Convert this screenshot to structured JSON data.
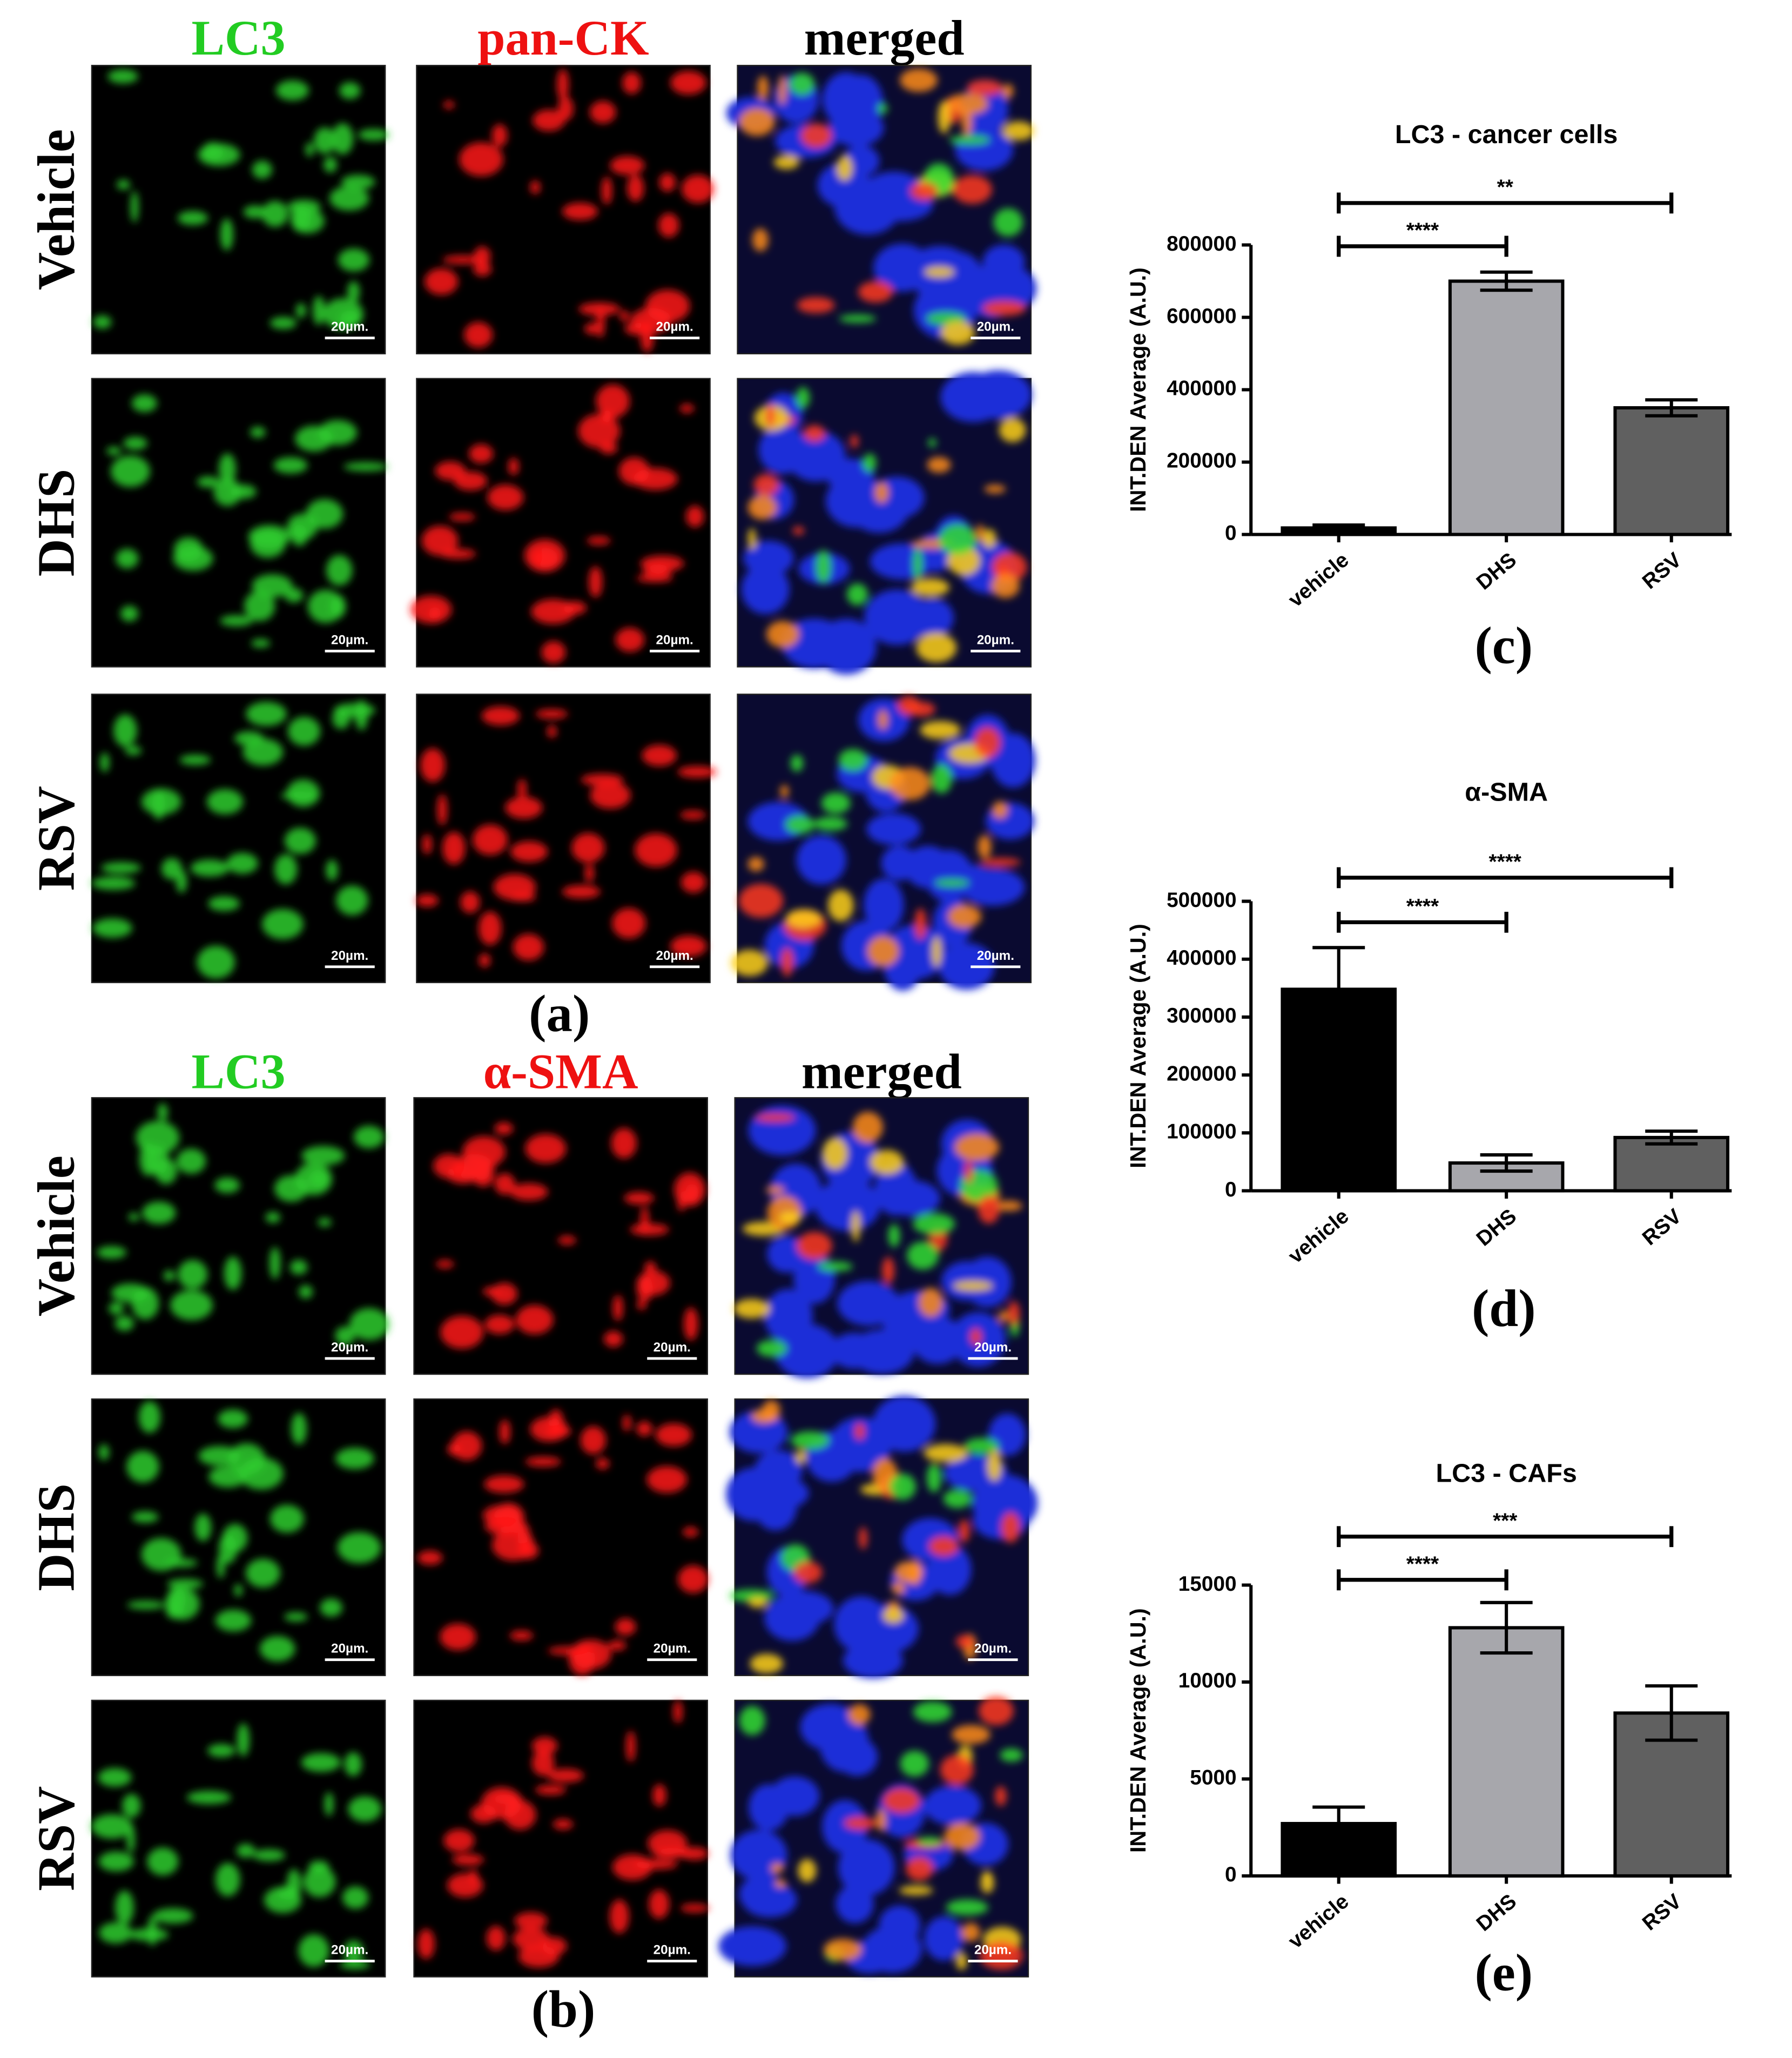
{
  "figure": {
    "a": {
      "label": "(a)",
      "columns": [
        "LC3",
        "pan-CK",
        "merged"
      ],
      "rows": [
        "Vehicle",
        "DHS",
        "RSV"
      ]
    },
    "b": {
      "label": "(b)",
      "columns": [
        "LC3",
        "α-SMA",
        "merged"
      ],
      "rows": [
        "Vehicle",
        "DHS",
        "RSV"
      ]
    },
    "scale_bar": "20µm."
  },
  "chart_data": [
    {
      "type": "bar",
      "title": "LC3 - cancer cells",
      "caption": "(c)",
      "y_label": "INT.DEN Average (A.U.)",
      "categories": [
        "vehicle",
        "DHS",
        "RSV"
      ],
      "values": [
        18000,
        700000,
        350000
      ],
      "errors": [
        8000,
        25000,
        22000
      ],
      "colors": [
        "#000000",
        "#a7a7ac",
        "#606060"
      ],
      "ylim": [
        0,
        800000
      ],
      "yticks": [
        0,
        200000,
        400000,
        600000,
        800000
      ],
      "annotations": [
        {
          "text": "****",
          "span": [
            0,
            1
          ]
        },
        {
          "text": "**",
          "span": [
            0,
            2
          ]
        }
      ]
    },
    {
      "type": "bar",
      "title": "α-SMA",
      "caption": "(d)",
      "y_label": "INT.DEN Average (A.U.)",
      "categories": [
        "vehicle",
        "DHS",
        "RSV"
      ],
      "values": [
        348000,
        48000,
        92000
      ],
      "errors": [
        72000,
        14000,
        11000
      ],
      "colors": [
        "#000000",
        "#a7a7ac",
        "#606060"
      ],
      "ylim": [
        0,
        500000
      ],
      "yticks": [
        0,
        100000,
        200000,
        300000,
        400000,
        500000
      ],
      "annotations": [
        {
          "text": "****",
          "span": [
            0,
            1
          ]
        },
        {
          "text": "****",
          "span": [
            0,
            2
          ]
        }
      ]
    },
    {
      "type": "bar",
      "title": "LC3 - CAFs",
      "caption": "(e)",
      "y_label": "INT.DEN Average (A.U.)",
      "categories": [
        "vehicle",
        "DHS",
        "RSV"
      ],
      "values": [
        2700,
        12800,
        8400
      ],
      "errors": [
        850,
        1300,
        1400
      ],
      "colors": [
        "#000000",
        "#a7a7ac",
        "#606060"
      ],
      "ylim": [
        0,
        15000
      ],
      "yticks": [
        0,
        5000,
        10000,
        15000
      ],
      "annotations": [
        {
          "text": "****",
          "span": [
            0,
            1
          ]
        },
        {
          "text": "***",
          "span": [
            0,
            2
          ]
        }
      ]
    }
  ]
}
